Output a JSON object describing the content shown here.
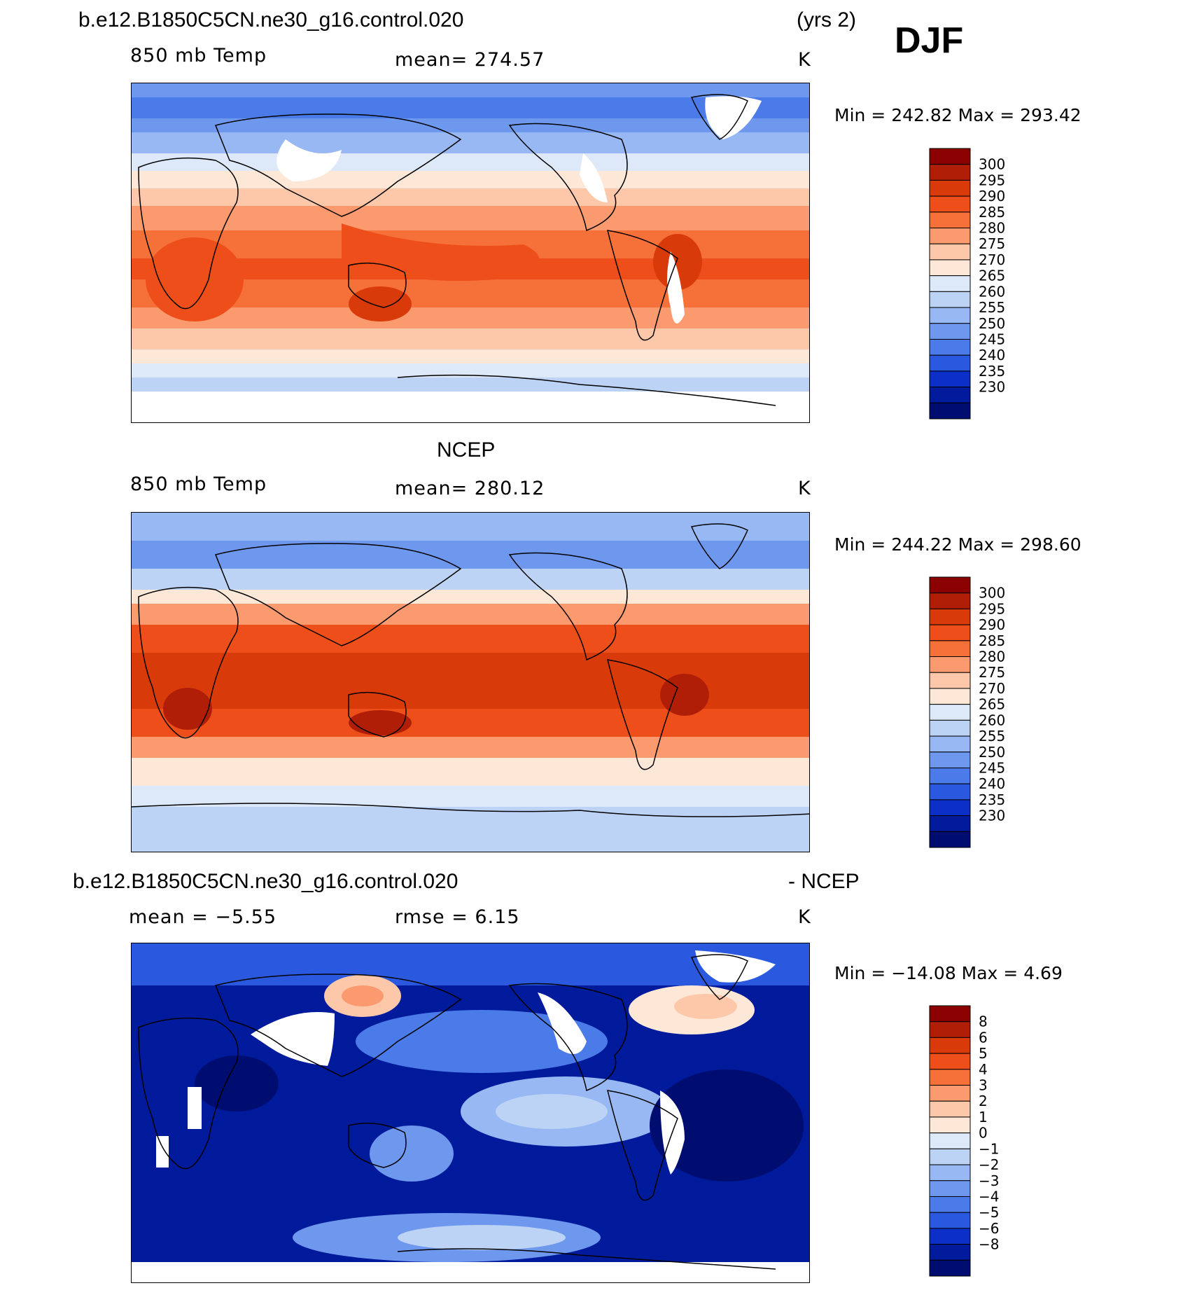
{
  "header": {
    "case_name": "b.e12.B1850C5CN.ne30_g16.control.020",
    "years": "(yrs 2)",
    "season": "DJF"
  },
  "panels": [
    {
      "id": "model",
      "title": "",
      "variable": "850 mb Temp",
      "stat": "mean=  274.57",
      "units": "K",
      "minmax": "Min  =  242.82  Max  =  293.42",
      "colorbar_labels": [
        "300",
        "295",
        "290",
        "285",
        "280",
        "275",
        "270",
        "265",
        "260",
        "255",
        "250",
        "245",
        "240",
        "235",
        "230"
      ]
    },
    {
      "id": "obs",
      "title": "NCEP",
      "variable": "850 mb Temp",
      "stat": "mean=  280.12",
      "units": "K",
      "minmax": "Min  =  244.22  Max  =  298.60",
      "colorbar_labels": [
        "300",
        "295",
        "290",
        "285",
        "280",
        "275",
        "270",
        "265",
        "260",
        "255",
        "250",
        "245",
        "240",
        "235",
        "230"
      ]
    },
    {
      "id": "diff",
      "title_left": "b.e12.B1850C5CN.ne30_g16.control.020",
      "title_right": "- NCEP",
      "stat_left": "mean  =    −5.55",
      "stat_right": "rmse  =      6.15",
      "units": "K",
      "minmax": "Min  =  −14.08  Max  =       4.69",
      "colorbar_labels": [
        "8",
        "6",
        "5",
        "4",
        "3",
        "2",
        "1",
        "0",
        "−1",
        "−2",
        "−3",
        "−4",
        "−5",
        "−6",
        "−8"
      ]
    }
  ],
  "palette_full": [
    "#8b0000",
    "#b01e08",
    "#d93a0a",
    "#ee4f1a",
    "#f6703a",
    "#fa9a6e",
    "#fdc8aa",
    "#fde8d8",
    "#dde9f8",
    "#bcd3f5",
    "#97b8f2",
    "#6e98ee",
    "#4b7be8",
    "#2a58de",
    "#0c2fc8",
    "#001a9c",
    "#000d70"
  ],
  "colors": {
    "ocean_deep": "#000d70",
    "land_mask": "#ffffff",
    "coast": "#000000"
  }
}
